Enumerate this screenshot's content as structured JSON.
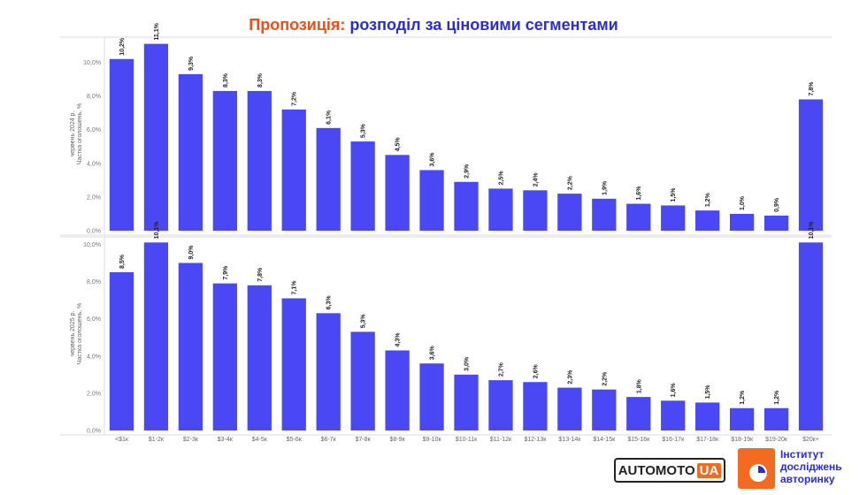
{
  "title": {
    "accent": "Пропозиція:",
    "main": "розподіл за ціновими сегментами"
  },
  "logos": {
    "automoto_main": "AUTOMOTO",
    "automoto_ua": "UA",
    "institute_lines": [
      "Інститут",
      "досліджень",
      "авторинку"
    ]
  },
  "colors": {
    "bar": "#4A47F5",
    "accent": "#E8501C",
    "brand_blue": "#2B2DCF"
  },
  "chart_data": [
    {
      "type": "bar",
      "ylabel": "Частка оголошень, %",
      "period_label": "червень 2024 р.",
      "ylim": [
        0,
        11.5
      ],
      "yticks": [
        "0,0%",
        "2,0%",
        "4,0%",
        "6,0%",
        "8,0%",
        "10,0%"
      ],
      "ytick_values": [
        0,
        2,
        4,
        6,
        8,
        10
      ],
      "categories": [
        "<$1к",
        "$1-2к",
        "$2-3к",
        "$3-4к",
        "$4-5к",
        "$5-6к",
        "$6-7к",
        "$7-8к",
        "$8-9к",
        "$9-10к",
        "$10-11к",
        "$11-12к",
        "$12-13к",
        "$13-14к",
        "$14-15к",
        "$15-16к",
        "$16-17к",
        "$17-18к",
        "$18-19к",
        "$19-20к",
        "$20к+"
      ],
      "values": [
        10.2,
        11.1,
        9.3,
        8.3,
        8.3,
        7.2,
        6.1,
        5.3,
        4.5,
        3.6,
        2.9,
        2.5,
        2.4,
        2.2,
        1.9,
        1.6,
        1.5,
        1.2,
        1.0,
        0.9,
        7.8
      ],
      "labels": [
        "10,2%",
        "11,1%",
        "9,3%",
        "8,3%",
        "8,3%",
        "7,2%",
        "6,1%",
        "5,3%",
        "4,5%",
        "3,6%",
        "2,9%",
        "2,5%",
        "2,4%",
        "2,2%",
        "1,9%",
        "1,6%",
        "1,5%",
        "1,2%",
        "1,0%",
        "0,9%",
        "7,8%"
      ]
    },
    {
      "type": "bar",
      "ylabel": "Частка оголошень, %",
      "period_label": "червень 2025 р.",
      "ylim": [
        0,
        10.4
      ],
      "yticks": [
        "0,0%",
        "2,0%",
        "4,0%",
        "6,0%",
        "8,0%",
        "10,0%"
      ],
      "ytick_values": [
        0,
        2,
        4,
        6,
        8,
        10
      ],
      "categories": [
        "<$1к",
        "$1-2к",
        "$2-3к",
        "$3-4к",
        "$4-5к",
        "$5-6к",
        "$6-7к",
        "$7-8к",
        "$8-9к",
        "$9-10к",
        "$10-11к",
        "$11-12к",
        "$12-13к",
        "$13-14к",
        "$14-15к",
        "$15-16к",
        "$16-17к",
        "$17-18к",
        "$18-19к",
        "$19-20к",
        "$20к+"
      ],
      "values": [
        8.5,
        10.1,
        9.0,
        7.9,
        7.8,
        7.1,
        6.3,
        5.3,
        4.3,
        3.6,
        3.0,
        2.7,
        2.6,
        2.3,
        2.2,
        1.8,
        1.6,
        1.5,
        1.2,
        1.2,
        10.1
      ],
      "labels": [
        "8,5%",
        "10,1%",
        "9,0%",
        "7,9%",
        "7,8%",
        "7,1%",
        "6,3%",
        "5,3%",
        "4,3%",
        "3,6%",
        "3,0%",
        "2,7%",
        "2,6%",
        "2,3%",
        "2,2%",
        "1,8%",
        "1,6%",
        "1,5%",
        "1,2%",
        "1,2%",
        "10,1%"
      ]
    }
  ]
}
